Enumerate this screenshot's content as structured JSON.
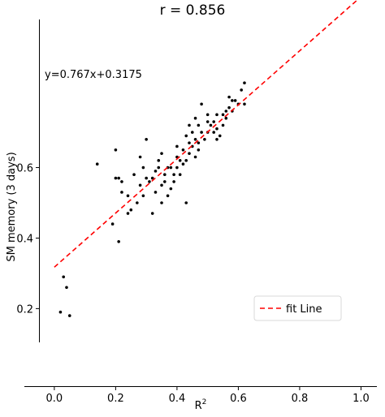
{
  "chart_data": {
    "type": "scatter",
    "title": "r = 0.856",
    "xlabel": "R",
    "xlabel_sup": "2",
    "ylabel": "SM memory (3 days)",
    "xlim": [
      -0.05,
      1.02
    ],
    "ylim": [
      -0.02,
      1.02
    ],
    "x_ticks": [
      0.0,
      0.2,
      0.4,
      0.6,
      0.8,
      1.0
    ],
    "x_tick_labels": [
      "0.0",
      "0.2",
      "0.4",
      "0.6",
      "0.8",
      "1.0"
    ],
    "y_ticks": [
      0.2,
      0.4,
      0.6
    ],
    "y_tick_labels": [
      "0.2",
      "0.4",
      "0.6"
    ],
    "annotation": "y=0.767x+0.3175",
    "fit_line": {
      "name": "fit Line",
      "slope": 0.767,
      "intercept": 0.3175,
      "x_range": [
        0.0,
        1.0
      ],
      "color": "#ff0000",
      "style": "dashed"
    },
    "legend_position": "lower-right",
    "grid": false,
    "point_color": "#000000",
    "points": [
      [
        0.02,
        0.19
      ],
      [
        0.03,
        0.29
      ],
      [
        0.04,
        0.26
      ],
      [
        0.05,
        0.18
      ],
      [
        0.14,
        0.61
      ],
      [
        0.19,
        0.44
      ],
      [
        0.2,
        0.65
      ],
      [
        0.21,
        0.39
      ],
      [
        0.2,
        0.57
      ],
      [
        0.21,
        0.57
      ],
      [
        0.22,
        0.56
      ],
      [
        0.22,
        0.53
      ],
      [
        0.24,
        0.47
      ],
      [
        0.25,
        0.48
      ],
      [
        0.24,
        0.52
      ],
      [
        0.26,
        0.58
      ],
      [
        0.28,
        0.55
      ],
      [
        0.28,
        0.63
      ],
      [
        0.29,
        0.52
      ],
      [
        0.29,
        0.6
      ],
      [
        0.3,
        0.68
      ],
      [
        0.31,
        0.56
      ],
      [
        0.32,
        0.47
      ],
      [
        0.32,
        0.57
      ],
      [
        0.33,
        0.53
      ],
      [
        0.33,
        0.59
      ],
      [
        0.34,
        0.62
      ],
      [
        0.35,
        0.55
      ],
      [
        0.35,
        0.5
      ],
      [
        0.36,
        0.58
      ],
      [
        0.36,
        0.56
      ],
      [
        0.37,
        0.52
      ],
      [
        0.38,
        0.54
      ],
      [
        0.38,
        0.6
      ],
      [
        0.39,
        0.58
      ],
      [
        0.4,
        0.6
      ],
      [
        0.4,
        0.63
      ],
      [
        0.41,
        0.58
      ],
      [
        0.42,
        0.65
      ],
      [
        0.42,
        0.61
      ],
      [
        0.43,
        0.62
      ],
      [
        0.43,
        0.5
      ],
      [
        0.44,
        0.64
      ],
      [
        0.44,
        0.72
      ],
      [
        0.45,
        0.66
      ],
      [
        0.45,
        0.7
      ],
      [
        0.46,
        0.74
      ],
      [
        0.46,
        0.63
      ],
      [
        0.47,
        0.67
      ],
      [
        0.47,
        0.72
      ],
      [
        0.48,
        0.7
      ],
      [
        0.48,
        0.78
      ],
      [
        0.49,
        0.68
      ],
      [
        0.5,
        0.75
      ],
      [
        0.5,
        0.7
      ],
      [
        0.51,
        0.72
      ],
      [
        0.52,
        0.73
      ],
      [
        0.52,
        0.7
      ],
      [
        0.53,
        0.68
      ],
      [
        0.53,
        0.75
      ],
      [
        0.54,
        0.69
      ],
      [
        0.55,
        0.72
      ],
      [
        0.55,
        0.75
      ],
      [
        0.56,
        0.74
      ],
      [
        0.57,
        0.77
      ],
      [
        0.57,
        0.8
      ],
      [
        0.58,
        0.76
      ],
      [
        0.59,
        0.79
      ],
      [
        0.6,
        0.78
      ],
      [
        0.61,
        0.82
      ],
      [
        0.62,
        0.78
      ],
      [
        0.62,
        0.84
      ],
      [
        0.3,
        0.57
      ],
      [
        0.35,
        0.64
      ],
      [
        0.37,
        0.6
      ],
      [
        0.4,
        0.66
      ],
      [
        0.34,
        0.6
      ],
      [
        0.46,
        0.68
      ],
      [
        0.5,
        0.73
      ],
      [
        0.56,
        0.76
      ],
      [
        0.41,
        0.62
      ],
      [
        0.44,
        0.67
      ],
      [
        0.58,
        0.79
      ],
      [
        0.47,
        0.65
      ],
      [
        0.27,
        0.5
      ],
      [
        0.39,
        0.56
      ],
      [
        0.43,
        0.69
      ],
      [
        0.53,
        0.71
      ]
    ]
  }
}
